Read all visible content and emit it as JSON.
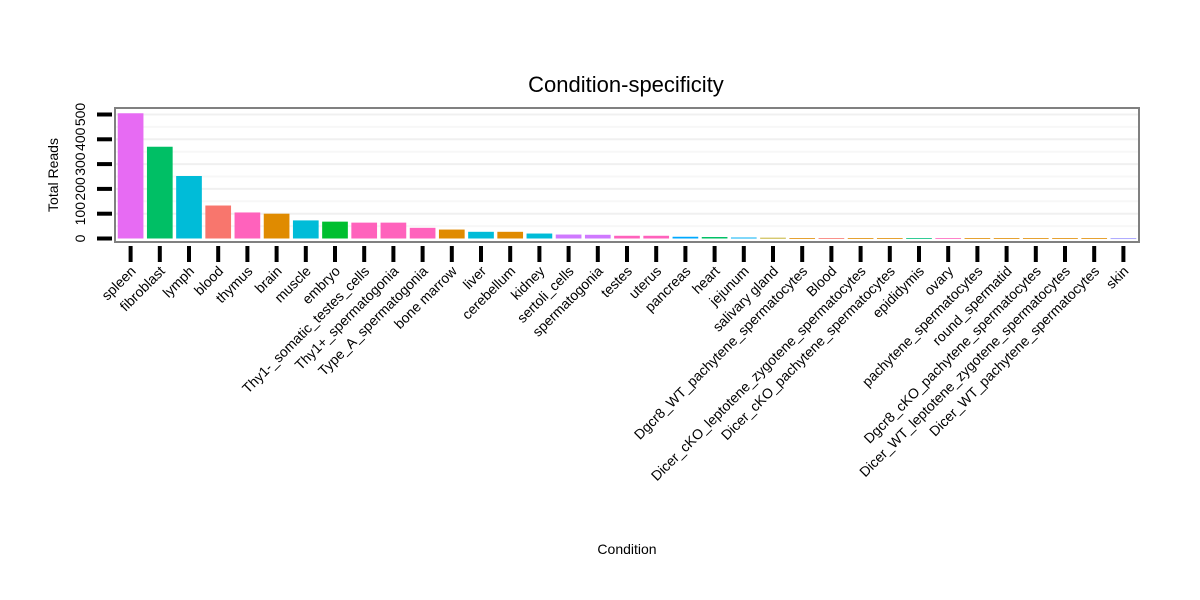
{
  "chart_data": {
    "type": "bar",
    "title": "Condition-specificity",
    "xlabel": "Condition",
    "ylabel": "Total Reads",
    "ylim": [
      0,
      520
    ],
    "yticks": [
      0,
      100,
      200,
      300,
      400,
      500
    ],
    "ytick_labels": [
      "0",
      "100",
      "200",
      "300",
      "400",
      "500"
    ],
    "grid": true,
    "legend": "none",
    "categories": [
      "spleen",
      "fibroblast",
      "lymph",
      "blood",
      "thymus",
      "brain",
      "muscle",
      "embryo",
      "Thy1-_somatic_testes_cells",
      "Thy1+_spermatogonia",
      "Type_A_spermatogonia",
      "bone marrow",
      "liver",
      "cerebellum",
      "kidney",
      "sertoli_cells",
      "spermatogonia",
      "testes",
      "uterus",
      "pancreas",
      "heart",
      "jejunum",
      "salivary gland",
      "Dgcr8_WT_pachytene_spermatocytes",
      "Blood",
      "Dicer_cKO_leptotene_zygotene_spermatocytes",
      "Dicer_cKO_pachytene_spermatocytes",
      "epididymis",
      "ovary",
      "pachytene_spermatocytes",
      "round_spermatid",
      "Dgcr8_cKO_pachytene_spermatocytes",
      "Dicer_WT_leptotene_zygotene_spermatocytes",
      "Dicer_WT_pachytene_spermatocytes",
      "skin"
    ],
    "values": [
      505,
      370,
      252,
      133,
      105,
      100,
      73,
      68,
      64,
      64,
      43,
      36,
      27,
      27,
      20,
      16,
      15,
      11,
      11,
      7,
      6,
      4,
      3,
      2,
      2,
      2,
      2,
      2,
      2,
      2,
      2,
      2,
      2,
      2,
      1
    ],
    "colors": [
      "#E76BF3",
      "#00BF65",
      "#00BCD8",
      "#F8766D",
      "#FF62BC",
      "#E08B00",
      "#00BCD8",
      "#00BF2F",
      "#FF62BC",
      "#FF62BC",
      "#FF62BC",
      "#E08B00",
      "#00BCD8",
      "#E08B00",
      "#00BCD8",
      "#CF79FF",
      "#CF79FF",
      "#FF62BC",
      "#FF62BC",
      "#00A9FF",
      "#00BF65",
      "#00B0F6",
      "#B79F00",
      "#E08B00",
      "#F8766D",
      "#E08B00",
      "#E08B00",
      "#00BF7D",
      "#FF62BC",
      "#E08B00",
      "#E08B00",
      "#E08B00",
      "#E08B00",
      "#E08B00",
      "#9590FF"
    ]
  }
}
